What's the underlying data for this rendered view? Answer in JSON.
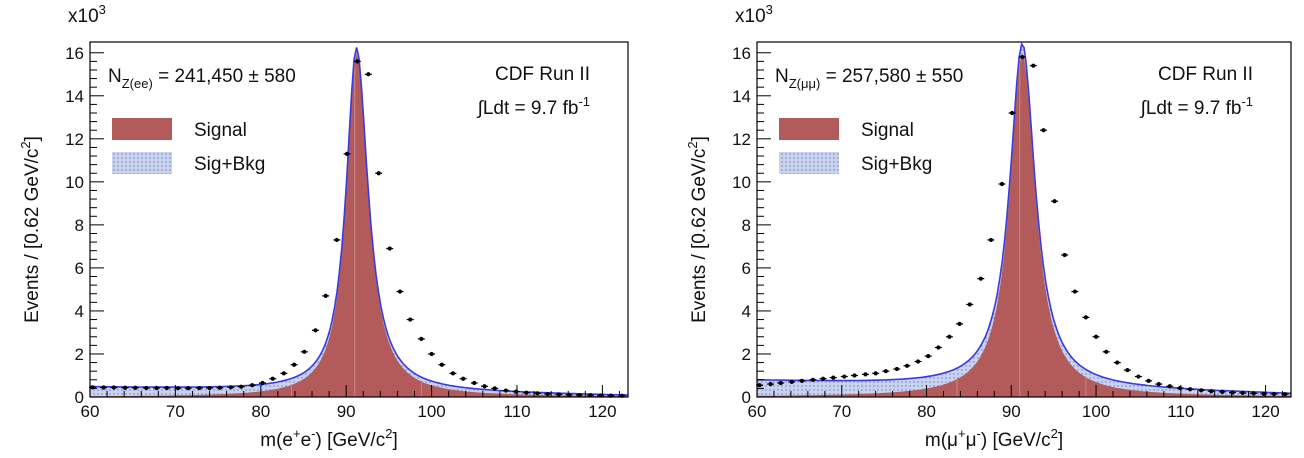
{
  "charts": [
    {
      "id": "ee",
      "type": "histogram",
      "exponent_label": "x10",
      "exponent_power": "3",
      "ylabel_main": "Events / [0.62 GeV/c",
      "ylabel_sup": "2",
      "ylabel_end": "]",
      "xlabel_main": "m(e",
      "xlabel_sup1": "+",
      "xlabel_mid": "e",
      "xlabel_sup2": "-",
      "xlabel_tail": ") [GeV/c",
      "xlabel_sup3": "2",
      "xlabel_end": "]",
      "nz_main": "N",
      "nz_sub": "Z(ee)",
      "nz_value": "= 241,450 ± 580",
      "experiment": "CDF Run II",
      "lumi_main": "∫Ldt = 9.7 fb",
      "lumi_sup": "-1",
      "legend": [
        {
          "label": "Signal",
          "color": "#b35a5a"
        },
        {
          "label": "Sig+Bkg",
          "color": "#b8c4e6"
        }
      ],
      "xlim": [
        60,
        123
      ],
      "ylim": [
        0,
        16.5
      ],
      "xticks": [
        60,
        70,
        80,
        90,
        100,
        110,
        120
      ],
      "yticks": [
        0,
        2,
        4,
        6,
        8,
        10,
        12,
        14,
        16
      ],
      "peak": {
        "mass": 91.2,
        "height": 16.0,
        "width_left": 2.9,
        "width_right": 3.3
      },
      "background": {
        "start": 0.45,
        "end": 0.05
      },
      "data_points": [
        [
          60.3,
          0.45
        ],
        [
          61.6,
          0.44
        ],
        [
          62.8,
          0.44
        ],
        [
          64.1,
          0.43
        ],
        [
          65.3,
          0.43
        ],
        [
          66.6,
          0.42
        ],
        [
          67.8,
          0.42
        ],
        [
          69.0,
          0.42
        ],
        [
          70.3,
          0.41
        ],
        [
          71.5,
          0.41
        ],
        [
          72.8,
          0.42
        ],
        [
          74.0,
          0.42
        ],
        [
          75.2,
          0.43
        ],
        [
          76.5,
          0.45
        ],
        [
          77.7,
          0.48
        ],
        [
          79.0,
          0.55
        ],
        [
          80.2,
          0.65
        ],
        [
          81.4,
          0.85
        ],
        [
          82.7,
          1.1
        ],
        [
          83.9,
          1.5
        ],
        [
          85.1,
          2.1
        ],
        [
          86.4,
          3.1
        ],
        [
          87.6,
          4.7
        ],
        [
          88.9,
          7.3
        ],
        [
          90.1,
          11.3
        ],
        [
          91.3,
          15.6
        ],
        [
          92.6,
          15.0
        ],
        [
          93.8,
          10.4
        ],
        [
          95.1,
          6.9
        ],
        [
          96.3,
          4.9
        ],
        [
          97.5,
          3.6
        ],
        [
          98.8,
          2.7
        ],
        [
          100.0,
          2.0
        ],
        [
          101.2,
          1.5
        ],
        [
          102.5,
          1.1
        ],
        [
          103.7,
          0.85
        ],
        [
          105.0,
          0.65
        ],
        [
          106.2,
          0.5
        ],
        [
          107.4,
          0.4
        ],
        [
          108.7,
          0.3
        ],
        [
          109.9,
          0.25
        ],
        [
          111.1,
          0.2
        ],
        [
          112.4,
          0.17
        ],
        [
          113.6,
          0.14
        ],
        [
          114.9,
          0.12
        ],
        [
          116.1,
          0.1
        ],
        [
          117.3,
          0.09
        ],
        [
          118.6,
          0.08
        ],
        [
          119.8,
          0.07
        ],
        [
          121.0,
          0.06
        ],
        [
          122.3,
          0.06
        ]
      ]
    },
    {
      "id": "mumu",
      "type": "histogram",
      "exponent_label": "x10",
      "exponent_power": "3",
      "ylabel_main": "Events / [0.62 GeV/c",
      "ylabel_sup": "2",
      "ylabel_end": "]",
      "xlabel_main": "m(μ",
      "xlabel_sup1": "+",
      "xlabel_mid": "μ",
      "xlabel_sup2": "-",
      "xlabel_tail": ") [GeV/c",
      "xlabel_sup3": "2",
      "xlabel_end": "]",
      "nz_main": "N",
      "nz_sub": "Z(μμ)",
      "nz_value": "= 257,580 ± 550",
      "experiment": "CDF Run II",
      "lumi_main": "∫Ldt = 9.7 fb",
      "lumi_sup": "-1",
      "legend": [
        {
          "label": "Signal",
          "color": "#b35a5a"
        },
        {
          "label": "Sig+Bkg",
          "color": "#b8c4e6"
        }
      ],
      "xlim": [
        60,
        123
      ],
      "ylim": [
        0,
        16.5
      ],
      "xticks": [
        60,
        70,
        80,
        90,
        100,
        110,
        120
      ],
      "yticks": [
        0,
        2,
        4,
        6,
        8,
        10,
        12,
        14,
        16
      ],
      "peak": {
        "mass": 91.3,
        "height": 16.0,
        "width_left": 3.6,
        "width_right": 3.7
      },
      "background": {
        "start": 0.75,
        "end": 0.12
      },
      "data_points": [
        [
          60.3,
          0.55
        ],
        [
          61.6,
          0.6
        ],
        [
          62.8,
          0.65
        ],
        [
          64.1,
          0.7
        ],
        [
          65.3,
          0.75
        ],
        [
          66.6,
          0.8
        ],
        [
          67.8,
          0.85
        ],
        [
          69.0,
          0.9
        ],
        [
          70.3,
          0.95
        ],
        [
          71.5,
          1.0
        ],
        [
          72.8,
          1.05
        ],
        [
          74.0,
          1.1
        ],
        [
          75.2,
          1.2
        ],
        [
          76.5,
          1.3
        ],
        [
          77.7,
          1.45
        ],
        [
          79.0,
          1.65
        ],
        [
          80.2,
          1.9
        ],
        [
          81.4,
          2.3
        ],
        [
          82.7,
          2.8
        ],
        [
          83.9,
          3.4
        ],
        [
          85.1,
          4.3
        ],
        [
          86.4,
          5.5
        ],
        [
          87.6,
          7.3
        ],
        [
          88.9,
          9.9
        ],
        [
          90.1,
          13.2
        ],
        [
          91.3,
          15.8
        ],
        [
          92.6,
          15.4
        ],
        [
          93.8,
          12.4
        ],
        [
          95.1,
          9.1
        ],
        [
          96.3,
          6.6
        ],
        [
          97.5,
          4.9
        ],
        [
          98.8,
          3.7
        ],
        [
          100.0,
          2.8
        ],
        [
          101.2,
          2.1
        ],
        [
          102.5,
          1.6
        ],
        [
          103.7,
          1.25
        ],
        [
          105.0,
          0.95
        ],
        [
          106.2,
          0.75
        ],
        [
          107.4,
          0.6
        ],
        [
          108.7,
          0.5
        ],
        [
          109.9,
          0.42
        ],
        [
          111.1,
          0.36
        ],
        [
          112.4,
          0.31
        ],
        [
          113.6,
          0.27
        ],
        [
          114.9,
          0.24
        ],
        [
          116.1,
          0.21
        ],
        [
          117.3,
          0.19
        ],
        [
          118.6,
          0.17
        ],
        [
          119.8,
          0.15
        ],
        [
          121.0,
          0.14
        ],
        [
          122.3,
          0.13
        ]
      ]
    }
  ]
}
